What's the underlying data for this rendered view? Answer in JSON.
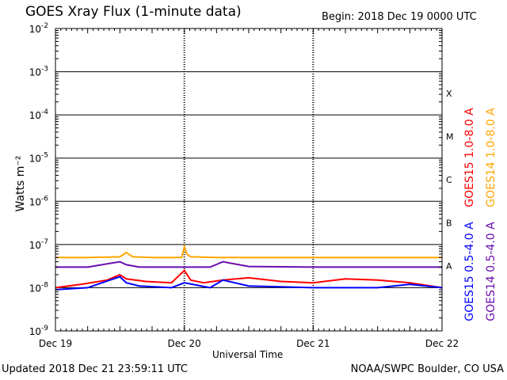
{
  "header": {
    "title": "GOES Xray Flux (1-minute data)",
    "begin": "Begin:  2018 Dec 19 0000 UTC"
  },
  "footer": {
    "updated": "Updated 2018 Dec 21 23:59:11 UTC",
    "credit": "NOAA/SWPC Boulder, CO USA"
  },
  "chart_data": {
    "type": "line",
    "title": "GOES Xray Flux (1-minute data)",
    "xlabel": "Universal Time",
    "ylabel": "Watts m⁻²",
    "yscale": "log",
    "ylim": [
      1e-09,
      0.01
    ],
    "xlim": [
      0,
      3
    ],
    "x_ticks": [
      {
        "label": "Dec 19",
        "value": 0
      },
      {
        "label": "Dec 20",
        "value": 1
      },
      {
        "label": "Dec 21",
        "value": 2
      },
      {
        "label": "Dec 22",
        "value": 3
      }
    ],
    "y_ticks": [
      {
        "mantissa": "10",
        "exp": "-2",
        "value": 0.01
      },
      {
        "mantissa": "10",
        "exp": "-3",
        "value": 0.001
      },
      {
        "mantissa": "10",
        "exp": "-4",
        "value": 0.0001
      },
      {
        "mantissa": "10",
        "exp": "-5",
        "value": 1e-05
      },
      {
        "mantissa": "10",
        "exp": "-6",
        "value": 1e-06
      },
      {
        "mantissa": "10",
        "exp": "-7",
        "value": 1e-07
      },
      {
        "mantissa": "10",
        "exp": "-8",
        "value": 1e-08
      },
      {
        "mantissa": "10",
        "exp": "-9",
        "value": 1e-09
      }
    ],
    "flare_classes": [
      {
        "label": "X",
        "value": 0.0001
      },
      {
        "label": "M",
        "value": 1e-05
      },
      {
        "label": "C",
        "value": 1e-06
      },
      {
        "label": "B",
        "value": 1e-07
      },
      {
        "label": "A",
        "value": 1e-08
      }
    ],
    "grid": true,
    "series": [
      {
        "name": "GOES14 1.0-8.0 A",
        "color": "#ffa500",
        "x": [
          0,
          0.25,
          0.5,
          0.55,
          0.6,
          0.75,
          0.98,
          1.0,
          1.02,
          1.05,
          1.25,
          1.5,
          2.0,
          2.5,
          2.75,
          3.0
        ],
        "y": [
          5e-08,
          5e-08,
          5.2e-08,
          6.5e-08,
          5.2e-08,
          5e-08,
          5e-08,
          9e-08,
          6e-08,
          5.2e-08,
          5e-08,
          5e-08,
          5e-08,
          5e-08,
          5e-08,
          5e-08
        ]
      },
      {
        "name": "GOES15 1.0-8.0 A",
        "color": "#ff0000",
        "x": [
          0,
          0.2,
          0.4,
          0.5,
          0.55,
          0.7,
          0.9,
          1.0,
          1.05,
          1.15,
          1.3,
          1.5,
          1.75,
          2.0,
          2.25,
          2.5,
          2.75,
          3.0
        ],
        "y": [
          1e-08,
          1.2e-08,
          1.5e-08,
          2e-08,
          1.6e-08,
          1.4e-08,
          1.3e-08,
          2.5e-08,
          1.5e-08,
          1.3e-08,
          1.5e-08,
          1.7e-08,
          1.4e-08,
          1.3e-08,
          1.6e-08,
          1.5e-08,
          1.3e-08,
          1e-08
        ]
      },
      {
        "name": "GOES14 0.5-4.0 A",
        "color": "#6a0dad",
        "x": [
          0,
          0.25,
          0.5,
          0.55,
          0.65,
          0.85,
          1.0,
          1.2,
          1.3,
          1.5,
          2.0,
          2.5,
          3.0
        ],
        "y": [
          3e-08,
          3e-08,
          4e-08,
          3.4e-08,
          3e-08,
          3e-08,
          3e-08,
          3e-08,
          4e-08,
          3.1e-08,
          3e-08,
          3e-08,
          3e-08
        ]
      },
      {
        "name": "GOES15 0.5-4.0 A",
        "color": "#0000ff",
        "x": [
          0,
          0.25,
          0.5,
          0.55,
          0.65,
          0.9,
          1.0,
          1.2,
          1.3,
          1.5,
          2.0,
          2.5,
          2.75,
          3.0
        ],
        "y": [
          9e-09,
          1e-08,
          1.8e-08,
          1.3e-08,
          1.1e-08,
          1e-08,
          1.3e-08,
          1e-08,
          1.5e-08,
          1.1e-08,
          1e-08,
          1e-08,
          1.2e-08,
          1e-08
        ]
      }
    ],
    "right_labels_top": [
      "GOES15 1.0-8.0 A",
      "GOES14 1.0-8.0 A"
    ],
    "right_labels_bottom": [
      "GOES15 0.5-4.0 A",
      "GOES14 0.5-4.0 A"
    ]
  }
}
